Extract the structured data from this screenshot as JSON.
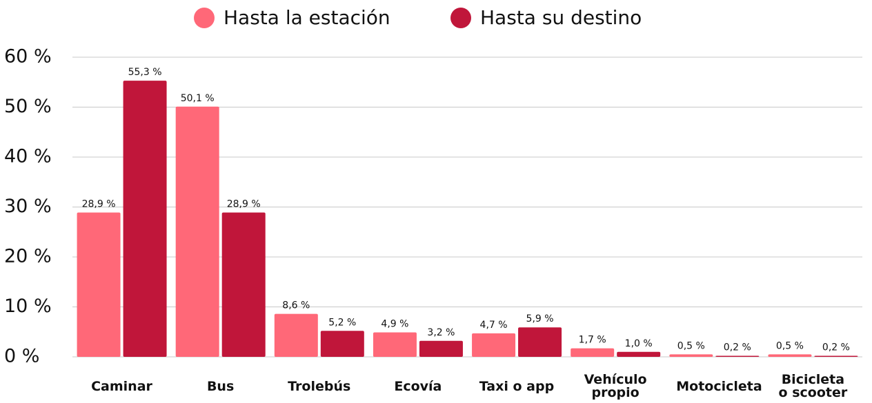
{
  "chart_data": {
    "type": "bar",
    "categories": [
      "Caminar",
      "Bus",
      "Trolebús",
      "Ecovía",
      "Taxi o app",
      "Vehículo propio",
      "Motocicleta",
      "Bicicleta o scooter"
    ],
    "series": [
      {
        "name": "Hasta la estación",
        "color": "#ff6878",
        "values": [
          28.9,
          50.1,
          8.6,
          4.9,
          4.7,
          1.7,
          0.5,
          0.5
        ],
        "value_labels": [
          "28,9 %",
          "50,1 %",
          "8,6 %",
          "4,9 %",
          "4,7 %",
          "1,7 %",
          "0,5 %",
          "0,5 %"
        ]
      },
      {
        "name": "Hasta su destino",
        "color": "#c0163a",
        "values": [
          55.3,
          28.9,
          5.2,
          3.2,
          5.9,
          1.0,
          0.2,
          0.2
        ],
        "value_labels": [
          "55,3 %",
          "28,9 %",
          "5,2 %",
          "3,2 %",
          "5,9 %",
          "1,0 %",
          "0,2 %",
          "0,2 %"
        ]
      }
    ],
    "ylim": [
      0,
      60
    ],
    "yticks": [
      {
        "value": 0,
        "label": "0 %"
      },
      {
        "value": 10,
        "label": "10 %"
      },
      {
        "value": 20,
        "label": "20 %"
      },
      {
        "value": 30,
        "label": "30 %"
      },
      {
        "value": 40,
        "label": "40 %"
      },
      {
        "value": 50,
        "label": "50 %"
      },
      {
        "value": 60,
        "label": "60 %"
      }
    ],
    "grid": true,
    "legend": "top"
  }
}
